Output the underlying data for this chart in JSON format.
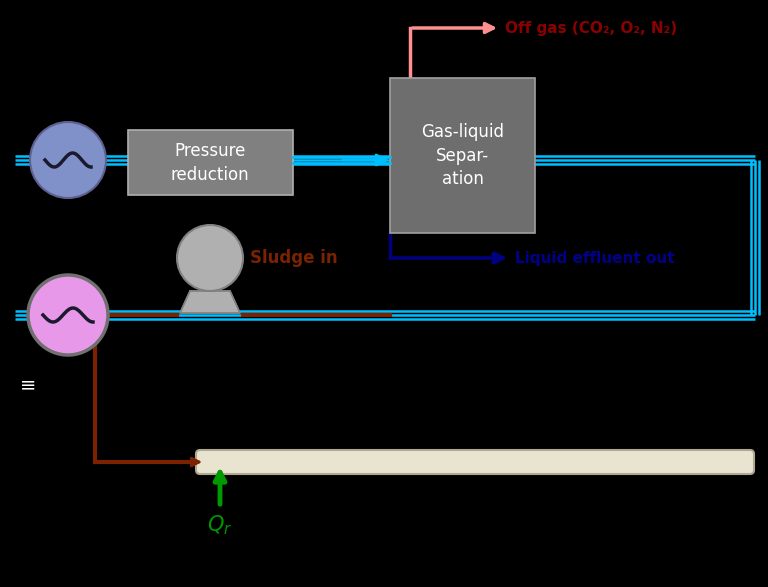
{
  "bg_color": "#000000",
  "cyan_line_color": "#00BFFF",
  "brown_line_color": "#7B2200",
  "dark_red_text": "#8B0000",
  "dark_blue_text": "#00008B",
  "green_color": "#009900",
  "gray_box_color": "#6E6E6E",
  "pressure_box_color": "#808080",
  "blue_oval_color": "#8090C8",
  "blue_oval_edge": "#606090",
  "pink_oval_color": "#E898E8",
  "pink_oval_edge": "#707070",
  "gray_pump_color": "#B0B0B0",
  "gray_pump_edge": "#808080",
  "reactor_tube_color": "#E8E4D0",
  "reactor_tube_edge": "#B0A890",
  "offgas_line_color": "#FF9090",
  "liquid_line_color": "#000080",
  "offgas_label": "Off gas (CO₂, O₂, N₂)",
  "liquid_label": "Liquid effluent out",
  "sludge_label": "Sludge in",
  "separator_label": "Gas-liquid\nSepar-\nation",
  "pressure_label": "Pressure\nreduction"
}
